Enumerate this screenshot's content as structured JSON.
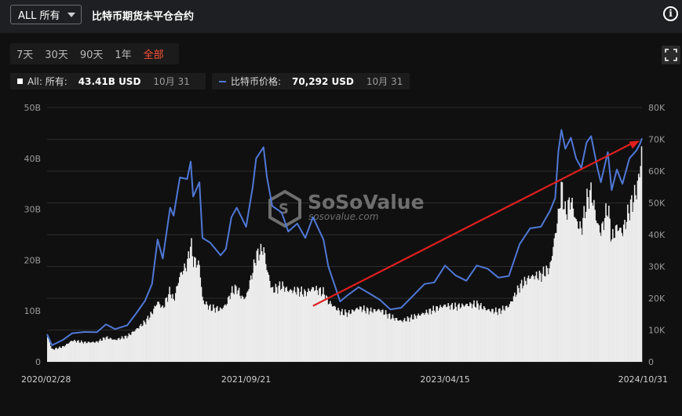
{
  "header": {
    "select_value": "ALL 所有",
    "title": "比特币期货未平仓合约",
    "info_icon": "info-icon"
  },
  "ranges": [
    "7天",
    "30天",
    "90天",
    "1年",
    "全部"
  ],
  "active_range": "全部",
  "legend": {
    "oi_label": "All: 所有:",
    "oi_value": "43.41B USD",
    "oi_date": "10月 31",
    "price_label": "比特币价格:",
    "price_value": "70,292 USD",
    "price_date": "10月 31"
  },
  "watermark": {
    "brand": "SoSoValue",
    "site": "sosovalue.com"
  },
  "colors": {
    "oi_fill": "#ececec",
    "price_line": "#4f78d6",
    "arrow": "#e01f1f",
    "active_range": "#ff5138"
  },
  "chart_data": {
    "type": "area",
    "x_ticks": [
      "2020/02/28",
      "2021/09/21",
      "2023/04/15",
      "2024/10/31"
    ],
    "y_left_ticks": [
      "0",
      "10B",
      "20B",
      "30B",
      "40B",
      "50B"
    ],
    "y_right_ticks": [
      "0",
      "10K",
      "20K",
      "30K",
      "40K",
      "50K",
      "60K",
      "70K",
      "80K"
    ],
    "ylim_left": [
      0,
      50
    ],
    "ylim_right": [
      0,
      80000
    ],
    "grid": true,
    "series": [
      {
        "name": "All: 所有",
        "unit": "B USD",
        "axis": "left",
        "points": [
          [
            "2020/02/28",
            5.2
          ],
          [
            "2020/03/13",
            2.4
          ],
          [
            "2020/04/15",
            3.0
          ],
          [
            "2020/05/10",
            4.2
          ],
          [
            "2020/06/15",
            3.8
          ],
          [
            "2020/07/20",
            3.9
          ],
          [
            "2020/08/15",
            4.8
          ],
          [
            "2020/09/10",
            4.3
          ],
          [
            "2020/10/15",
            5.0
          ],
          [
            "2020/11/10",
            6.4
          ],
          [
            "2020/12/05",
            7.8
          ],
          [
            "2020/12/25",
            9.6
          ],
          [
            "2021/01/10",
            11.8
          ],
          [
            "2021/01/25",
            10.5
          ],
          [
            "2021/02/15",
            14.0
          ],
          [
            "2021/02/25",
            12.0
          ],
          [
            "2021/03/15",
            17.0
          ],
          [
            "2021/04/05",
            19.2
          ],
          [
            "2021/04/15",
            23.5
          ],
          [
            "2021/04/22",
            20.0
          ],
          [
            "2021/05/10",
            19.0
          ],
          [
            "2021/05/19",
            12.0
          ],
          [
            "2021/06/10",
            10.6
          ],
          [
            "2021/07/10",
            10.3
          ],
          [
            "2021/07/25",
            11.2
          ],
          [
            "2021/08/10",
            13.8
          ],
          [
            "2021/08/25",
            14.5
          ],
          [
            "2021/09/10",
            12.5
          ],
          [
            "2021/09/21",
            12.7
          ],
          [
            "2021/10/10",
            17.8
          ],
          [
            "2021/10/20",
            20.8
          ],
          [
            "2021/11/10",
            22.3
          ],
          [
            "2021/11/20",
            18.0
          ],
          [
            "2021/12/05",
            14.0
          ],
          [
            "2022/01/01",
            15.0
          ],
          [
            "2022/01/20",
            14.0
          ],
          [
            "2022/02/15",
            14.0
          ],
          [
            "2022/03/10",
            13.5
          ],
          [
            "2022/04/01",
            14.5
          ],
          [
            "2022/05/01",
            13.6
          ],
          [
            "2022/05/15",
            11.8
          ],
          [
            "2022/06/18",
            9.8
          ],
          [
            "2022/07/10",
            9.5
          ],
          [
            "2022/08/10",
            10.6
          ],
          [
            "2022/09/10",
            10.0
          ],
          [
            "2022/10/10",
            10.2
          ],
          [
            "2022/11/09",
            8.9
          ],
          [
            "2022/12/10",
            8.0
          ],
          [
            "2023/01/15",
            8.8
          ],
          [
            "2023/02/15",
            9.6
          ],
          [
            "2023/03/15",
            10.3
          ],
          [
            "2023/04/15",
            11.1
          ],
          [
            "2023/05/15",
            10.8
          ],
          [
            "2023/06/15",
            11.2
          ],
          [
            "2023/07/15",
            11.3
          ],
          [
            "2023/08/15",
            10.2
          ],
          [
            "2023/09/15",
            9.9
          ],
          [
            "2023/10/15",
            11.0
          ],
          [
            "2023/11/15",
            14.8
          ],
          [
            "2023/12/15",
            16.7
          ],
          [
            "2024/01/15",
            17.0
          ],
          [
            "2024/02/10",
            18.5
          ],
          [
            "2024/02/25",
            25.0
          ],
          [
            "2024/03/05",
            28.8
          ],
          [
            "2024/03/14",
            34.6
          ],
          [
            "2024/03/25",
            29.0
          ],
          [
            "2024/04/10",
            32.0
          ],
          [
            "2024/04/25",
            27.5
          ],
          [
            "2024/05/10",
            26.0
          ],
          [
            "2024/05/25",
            31.5
          ],
          [
            "2024/06/07",
            33.5
          ],
          [
            "2024/06/25",
            27.0
          ],
          [
            "2024/07/05",
            25.5
          ],
          [
            "2024/07/25",
            30.5
          ],
          [
            "2024/08/05",
            24.0
          ],
          [
            "2024/08/20",
            26.5
          ],
          [
            "2024/09/05",
            25.5
          ],
          [
            "2024/09/25",
            30.0
          ],
          [
            "2024/10/15",
            33.5
          ],
          [
            "2024/10/25",
            37.5
          ],
          [
            "2024/10/31",
            43.41
          ]
        ]
      },
      {
        "name": "比特币价格",
        "unit": "USD",
        "axis": "right",
        "points": [
          [
            "2020/02/28",
            8700
          ],
          [
            "2020/03/13",
            5200
          ],
          [
            "2020/04/15",
            7000
          ],
          [
            "2020/05/10",
            9000
          ],
          [
            "2020/06/15",
            9400
          ],
          [
            "2020/07/20",
            9300
          ],
          [
            "2020/08/15",
            11800
          ],
          [
            "2020/09/10",
            10300
          ],
          [
            "2020/10/15",
            11500
          ],
          [
            "2020/11/10",
            15300
          ],
          [
            "2020/12/05",
            19200
          ],
          [
            "2020/12/25",
            24500
          ],
          [
            "2021/01/10",
            38500
          ],
          [
            "2021/01/25",
            32500
          ],
          [
            "2021/02/15",
            48500
          ],
          [
            "2021/02/25",
            46000
          ],
          [
            "2021/03/15",
            58000
          ],
          [
            "2021/04/05",
            57500
          ],
          [
            "2021/04/15",
            63000
          ],
          [
            "2021/04/22",
            52000
          ],
          [
            "2021/05/10",
            56500
          ],
          [
            "2021/05/19",
            39000
          ],
          [
            "2021/06/10",
            37500
          ],
          [
            "2021/07/10",
            33500
          ],
          [
            "2021/07/25",
            35500
          ],
          [
            "2021/08/10",
            45500
          ],
          [
            "2021/08/25",
            48500
          ],
          [
            "2021/09/10",
            45000
          ],
          [
            "2021/09/21",
            42500
          ],
          [
            "2021/10/10",
            55000
          ],
          [
            "2021/10/20",
            64000
          ],
          [
            "2021/11/10",
            67500
          ],
          [
            "2021/11/20",
            58000
          ],
          [
            "2021/12/05",
            49000
          ],
          [
            "2022/01/01",
            47000
          ],
          [
            "2022/01/20",
            41000
          ],
          [
            "2022/02/15",
            43500
          ],
          [
            "2022/03/10",
            39000
          ],
          [
            "2022/04/01",
            45500
          ],
          [
            "2022/05/01",
            38500
          ],
          [
            "2022/05/15",
            30000
          ],
          [
            "2022/06/18",
            19000
          ],
          [
            "2022/07/10",
            21000
          ],
          [
            "2022/08/10",
            23500
          ],
          [
            "2022/09/10",
            21500
          ],
          [
            "2022/10/10",
            19500
          ],
          [
            "2022/11/09",
            16500
          ],
          [
            "2022/12/10",
            17000
          ],
          [
            "2023/01/15",
            21000
          ],
          [
            "2023/02/15",
            24500
          ],
          [
            "2023/03/15",
            25000
          ],
          [
            "2023/04/15",
            30300
          ],
          [
            "2023/05/15",
            27200
          ],
          [
            "2023/06/15",
            25500
          ],
          [
            "2023/07/15",
            30300
          ],
          [
            "2023/08/15",
            29300
          ],
          [
            "2023/09/15",
            26500
          ],
          [
            "2023/10/15",
            27000
          ],
          [
            "2023/11/15",
            37000
          ],
          [
            "2023/12/15",
            42000
          ],
          [
            "2024/01/15",
            42500
          ],
          [
            "2024/02/10",
            47500
          ],
          [
            "2024/02/25",
            51500
          ],
          [
            "2024/03/05",
            66000
          ],
          [
            "2024/03/14",
            73000
          ],
          [
            "2024/03/25",
            67000
          ],
          [
            "2024/04/10",
            70500
          ],
          [
            "2024/04/25",
            64000
          ],
          [
            "2024/05/10",
            61000
          ],
          [
            "2024/05/25",
            69000
          ],
          [
            "2024/06/07",
            71000
          ],
          [
            "2024/06/25",
            61000
          ],
          [
            "2024/07/05",
            56500
          ],
          [
            "2024/07/25",
            66000
          ],
          [
            "2024/08/05",
            54000
          ],
          [
            "2024/08/20",
            60500
          ],
          [
            "2024/09/05",
            56000
          ],
          [
            "2024/09/25",
            64000
          ],
          [
            "2024/10/15",
            66500
          ],
          [
            "2024/10/25",
            68500
          ],
          [
            "2024/10/31",
            70292
          ]
        ]
      }
    ],
    "annotations": [
      {
        "type": "arrow",
        "from": [
          "2022/04/01",
          11.0
        ],
        "to": [
          "2024/10/25",
          43.5
        ],
        "axis": "left"
      }
    ]
  }
}
